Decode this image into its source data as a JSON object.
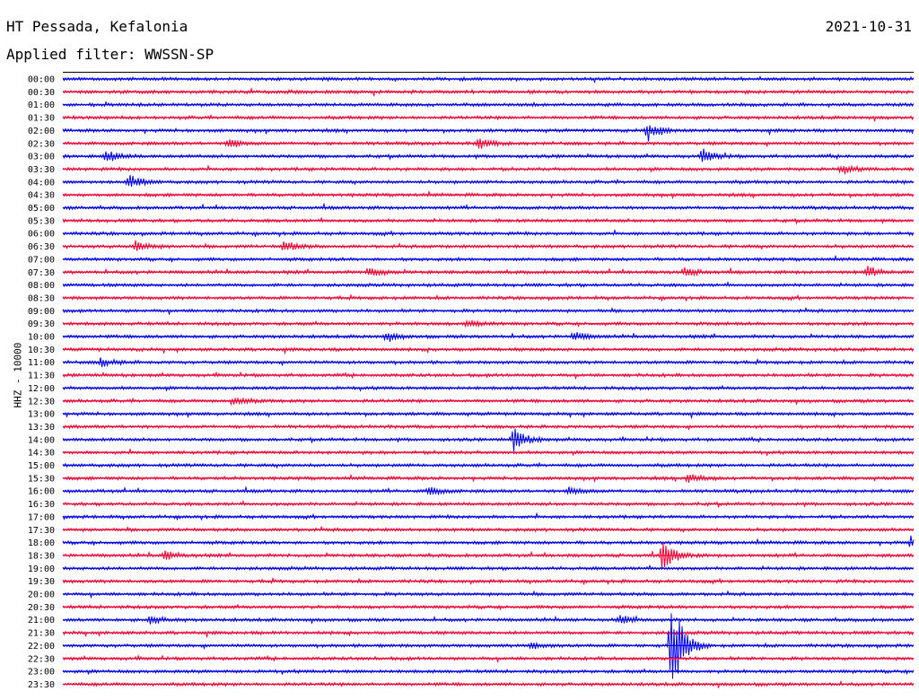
{
  "header": {
    "station": "HT Pessada, Kefalonia",
    "date": "2021-10-31",
    "filter": "Applied filter: WWSSN-SP"
  },
  "chart_data": {
    "type": "line",
    "ylabel": "HHZ - 10000",
    "colors": [
      "#0000ff",
      "#ff0033"
    ],
    "x": [
      "00:00",
      "00:30",
      "01:00",
      "01:30",
      "02:00",
      "02:30",
      "03:00",
      "03:30",
      "04:00",
      "04:30",
      "05:00",
      "05:30",
      "06:00",
      "06:30",
      "07:00",
      "07:30",
      "08:00",
      "08:30",
      "09:00",
      "09:30",
      "10:00",
      "10:30",
      "11:00",
      "11:30",
      "12:00",
      "12:30",
      "13:00",
      "13:30",
      "14:00",
      "14:30",
      "15:00",
      "15:30",
      "16:00",
      "16:30",
      "17:00",
      "17:30",
      "18:00",
      "18:30",
      "19:00",
      "19:30",
      "20:00",
      "20:30",
      "21:00",
      "21:30",
      "22:00",
      "22:30",
      "23:00",
      "23:30"
    ],
    "events": [
      {
        "row": "02:00",
        "pos": 0.687,
        "amp": 10
      },
      {
        "row": "02:30",
        "pos": 0.195,
        "amp": 6
      },
      {
        "row": "02:30",
        "pos": 0.488,
        "amp": 6
      },
      {
        "row": "03:00",
        "pos": 0.051,
        "amp": 7
      },
      {
        "row": "03:00",
        "pos": 0.752,
        "amp": 8
      },
      {
        "row": "03:30",
        "pos": 0.915,
        "amp": 5
      },
      {
        "row": "04:00",
        "pos": 0.078,
        "amp": 8
      },
      {
        "row": "06:30",
        "pos": 0.085,
        "amp": 6
      },
      {
        "row": "06:30",
        "pos": 0.26,
        "amp": 6
      },
      {
        "row": "07:30",
        "pos": 0.36,
        "amp": 6
      },
      {
        "row": "07:30",
        "pos": 0.73,
        "amp": 5
      },
      {
        "row": "07:30",
        "pos": 0.945,
        "amp": 6
      },
      {
        "row": "09:30",
        "pos": 0.475,
        "amp": 5
      },
      {
        "row": "10:00",
        "pos": 0.38,
        "amp": 4
      },
      {
        "row": "10:00",
        "pos": 0.6,
        "amp": 5
      },
      {
        "row": "11:00",
        "pos": 0.045,
        "amp": 5
      },
      {
        "row": "12:30",
        "pos": 0.2,
        "amp": 5
      },
      {
        "row": "14:00",
        "pos": 0.53,
        "amp": 13
      },
      {
        "row": "15:30",
        "pos": 0.735,
        "amp": 5
      },
      {
        "row": "16:00",
        "pos": 0.43,
        "amp": 5
      },
      {
        "row": "16:00",
        "pos": 0.595,
        "amp": 5
      },
      {
        "row": "18:00",
        "pos": 0.997,
        "amp": 6
      },
      {
        "row": "18:30",
        "pos": 0.12,
        "amp": 5
      },
      {
        "row": "18:30",
        "pos": 0.705,
        "amp": 18
      },
      {
        "row": "21:00",
        "pos": 0.102,
        "amp": 5
      },
      {
        "row": "21:00",
        "pos": 0.655,
        "amp": 4
      },
      {
        "row": "22:00",
        "pos": 0.55,
        "amp": 4
      },
      {
        "row": "22:00",
        "pos": 0.715,
        "amp": 58
      }
    ]
  }
}
